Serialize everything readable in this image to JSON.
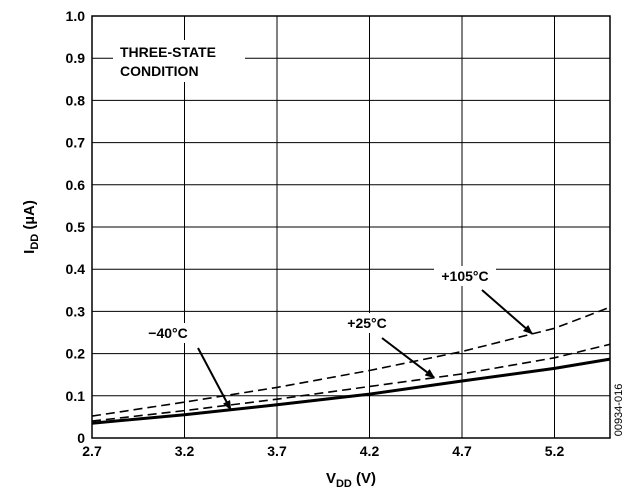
{
  "chart_data": {
    "type": "line",
    "xlabel": {
      "main": "V",
      "sub": "DD",
      "unit": " (V)"
    },
    "ylabel": {
      "main": "I",
      "sub": "DD",
      "unit": " (µA)"
    },
    "xlim": [
      2.7,
      5.5
    ],
    "ylim": [
      0,
      1.0
    ],
    "x_ticks": [
      2.7,
      3.2,
      3.7,
      4.2,
      4.7,
      5.2
    ],
    "x_tick_labels": [
      "2.7",
      "3.2",
      "3.7",
      "4.2",
      "4.7",
      "5.2"
    ],
    "y_ticks": [
      0,
      0.1,
      0.2,
      0.3,
      0.4,
      0.5,
      0.6,
      0.7,
      0.8,
      0.9,
      1.0
    ],
    "y_tick_labels": [
      "0",
      "0.1",
      "0.2",
      "0.3",
      "0.4",
      "0.5",
      "0.6",
      "0.7",
      "0.8",
      "0.9",
      "1.0"
    ],
    "grid": true,
    "annotation_box": [
      "THREE-STATE",
      "CONDITION"
    ],
    "series": [
      {
        "name": "+105°C",
        "style": "dashed",
        "x": [
          2.7,
          3.2,
          3.7,
          4.2,
          4.7,
          5.2,
          5.5
        ],
        "y": [
          0.052,
          0.085,
          0.12,
          0.16,
          0.205,
          0.26,
          0.31
        ]
      },
      {
        "name": "+25°C",
        "style": "dashed",
        "x": [
          2.7,
          3.2,
          3.7,
          4.2,
          4.7,
          5.2,
          5.5
        ],
        "y": [
          0.04,
          0.065,
          0.092,
          0.122,
          0.152,
          0.19,
          0.222
        ]
      },
      {
        "name": "−40°C",
        "style": "solid",
        "x": [
          2.7,
          3.2,
          3.7,
          4.2,
          4.7,
          5.2,
          5.5
        ],
        "y": [
          0.035,
          0.055,
          0.079,
          0.104,
          0.135,
          0.165,
          0.187
        ]
      }
    ],
    "labels": [
      {
        "text": "−40°C",
        "target_series": 2,
        "target_x": 3.45
      },
      {
        "text": "+25°C",
        "target_series": 1,
        "target_x": 4.55
      },
      {
        "text": "+105°C",
        "target_series": 0,
        "target_x": 5.08
      }
    ],
    "figure_id": "00934-016"
  }
}
